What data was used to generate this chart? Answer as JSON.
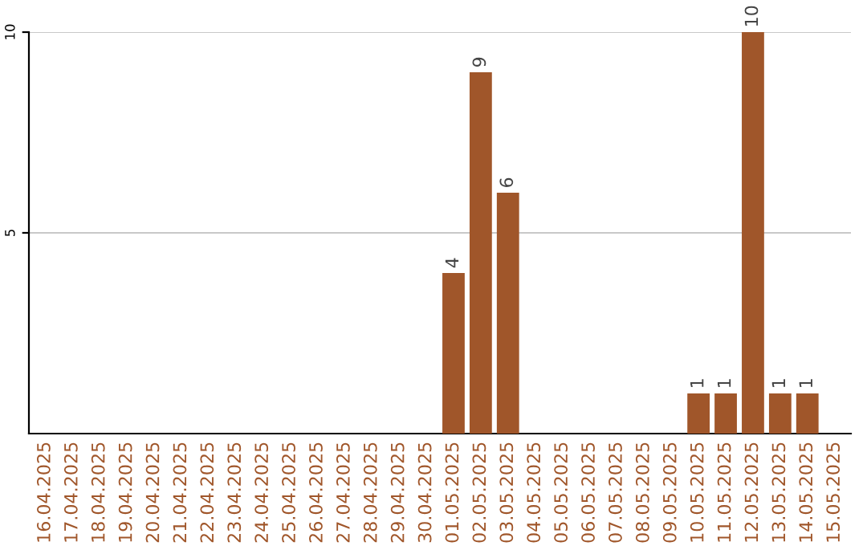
{
  "chart_data": {
    "type": "bar",
    "categories": [
      "16.04.2025",
      "17.04.2025",
      "18.04.2025",
      "19.04.2025",
      "20.04.2025",
      "21.04.2025",
      "22.04.2025",
      "23.04.2025",
      "24.04.2025",
      "25.04.2025",
      "26.04.2025",
      "27.04.2025",
      "28.04.2025",
      "29.04.2025",
      "30.04.2025",
      "01.05.2025",
      "02.05.2025",
      "03.05.2025",
      "04.05.2025",
      "05.05.2025",
      "06.05.2025",
      "07.05.2025",
      "08.05.2025",
      "09.05.2025",
      "10.05.2025",
      "11.05.2025",
      "12.05.2025",
      "13.05.2025",
      "14.05.2025",
      "15.05.2025"
    ],
    "values": [
      0,
      0,
      0,
      0,
      0,
      0,
      0,
      0,
      0,
      0,
      0,
      0,
      0,
      0,
      0,
      4,
      9,
      6,
      0,
      0,
      0,
      0,
      0,
      0,
      1,
      1,
      10,
      1,
      1,
      0
    ],
    "value_labels": [
      null,
      null,
      null,
      null,
      null,
      null,
      null,
      null,
      null,
      null,
      null,
      null,
      null,
      null,
      null,
      "4",
      "9",
      "6",
      null,
      null,
      null,
      null,
      null,
      null,
      "1",
      "1",
      "10",
      "1",
      "1",
      null
    ],
    "color": "#a0562a",
    "ylim": [
      0,
      10
    ],
    "yticks": [
      5,
      10
    ],
    "grid": "y",
    "legend": false
  }
}
